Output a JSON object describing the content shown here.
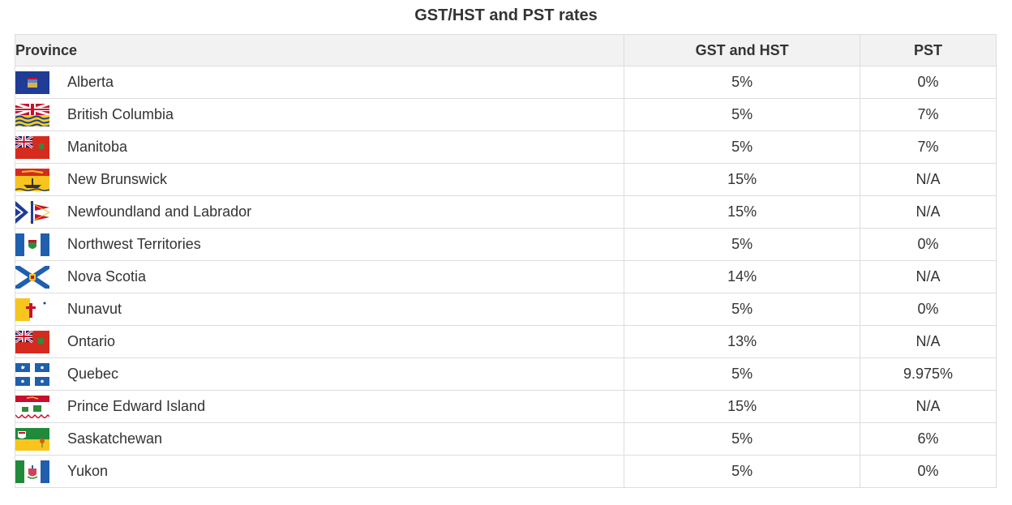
{
  "title": "GST/HST and PST rates",
  "headers": {
    "province": "Province",
    "gst": "GST and HST",
    "pst": "PST"
  },
  "rows": [
    {
      "province": "Alberta",
      "gst": "5%",
      "pst": "0%",
      "flag_icon": "alberta-flag-icon"
    },
    {
      "province": "British Columbia",
      "gst": "5%",
      "pst": "7%",
      "flag_icon": "british-columbia-flag-icon"
    },
    {
      "province": "Manitoba",
      "gst": "5%",
      "pst": "7%",
      "flag_icon": "manitoba-flag-icon"
    },
    {
      "province": "New Brunswick",
      "gst": "15%",
      "pst": "N/A",
      "flag_icon": "new-brunswick-flag-icon"
    },
    {
      "province": "Newfoundland and Labrador",
      "gst": "15%",
      "pst": "N/A",
      "flag_icon": "newfoundland-flag-icon"
    },
    {
      "province": "Northwest Territories",
      "gst": "5%",
      "pst": "0%",
      "flag_icon": "northwest-territories-flag-icon"
    },
    {
      "province": "Nova Scotia",
      "gst": "14%",
      "pst": "N/A",
      "flag_icon": "nova-scotia-flag-icon"
    },
    {
      "province": "Nunavut",
      "gst": "5%",
      "pst": "0%",
      "flag_icon": "nunavut-flag-icon"
    },
    {
      "province": "Ontario",
      "gst": "13%",
      "pst": "N/A",
      "flag_icon": "ontario-flag-icon"
    },
    {
      "province": "Quebec",
      "gst": "5%",
      "pst": "9.975%",
      "flag_icon": "quebec-flag-icon"
    },
    {
      "province": "Prince Edward Island",
      "gst": "15%",
      "pst": "N/A",
      "flag_icon": "prince-edward-island-flag-icon"
    },
    {
      "province": "Saskatchewan",
      "gst": "5%",
      "pst": "6%",
      "flag_icon": "saskatchewan-flag-icon"
    },
    {
      "province": "Yukon",
      "gst": "5%",
      "pst": "0%",
      "flag_icon": "yukon-flag-icon"
    }
  ],
  "colors": {
    "header_bg": "#f2f2f2",
    "border": "#dddddd",
    "text": "#333333"
  }
}
